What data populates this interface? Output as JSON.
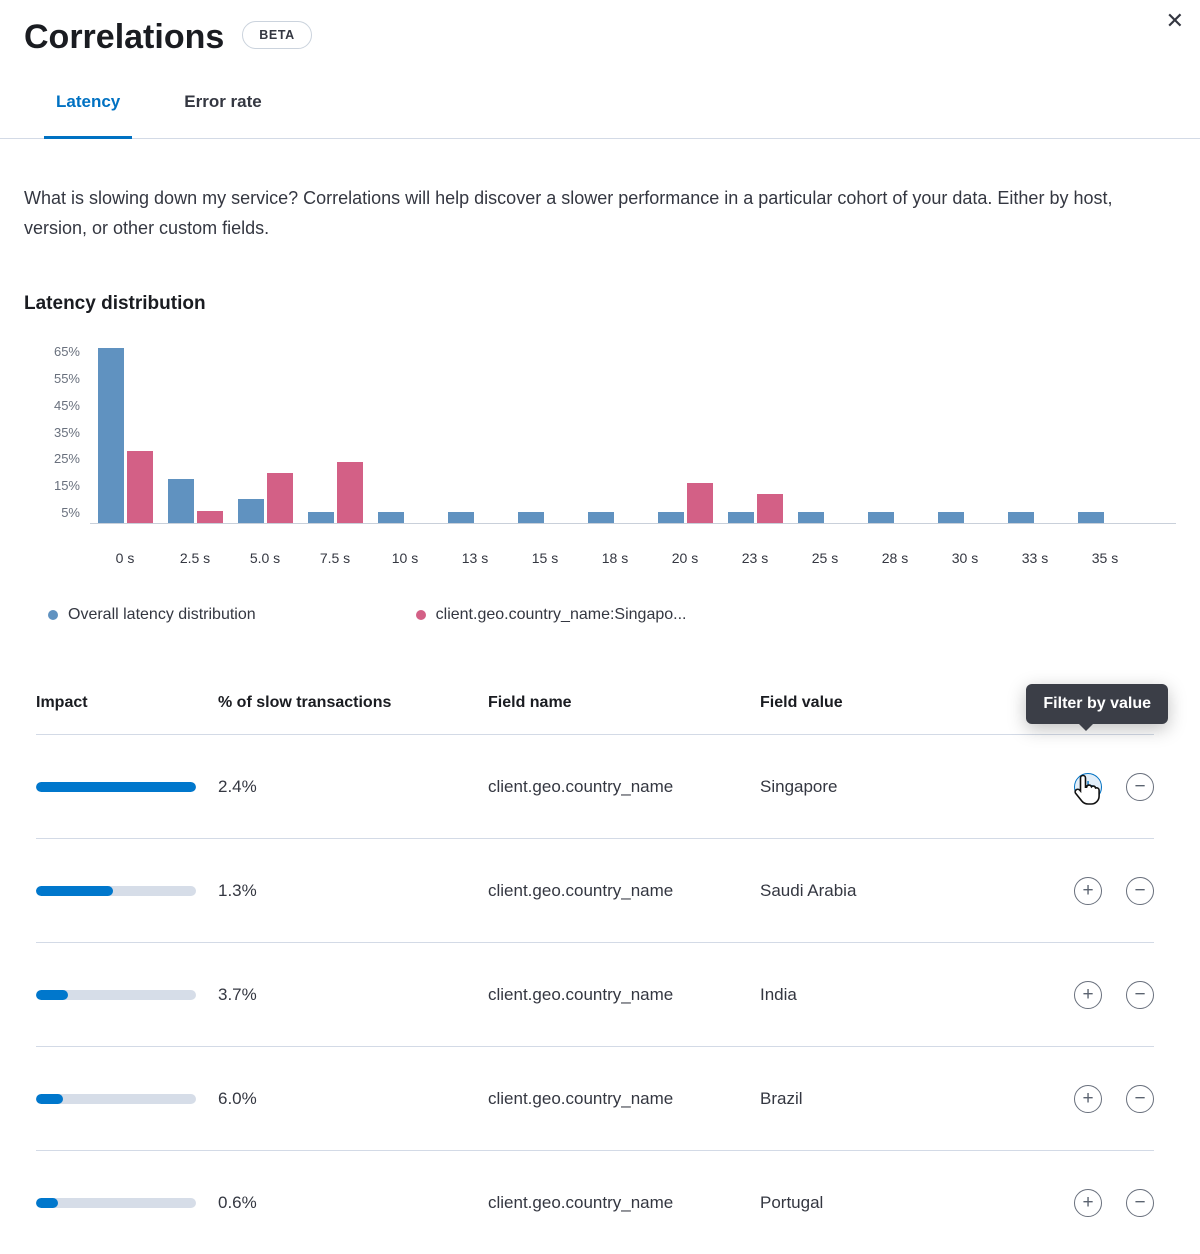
{
  "header": {
    "title": "Correlations",
    "beta_badge": "BETA"
  },
  "icons": {
    "close": "✕",
    "add": "+",
    "remove": "−"
  },
  "tabs": [
    {
      "label": "Latency",
      "active": true
    },
    {
      "label": "Error rate",
      "active": false
    }
  ],
  "description": "What is slowing down my service? Correlations will help discover a slower performance in a particular cohort of your data. Either by host, version, or other custom fields.",
  "chart_data": {
    "type": "bar",
    "title": "Latency distribution",
    "categories": [
      "0 s",
      "2.5 s",
      "5.0 s",
      "7.5 s",
      "10 s",
      "13 s",
      "15 s",
      "18 s",
      "20 s",
      "23 s",
      "25 s",
      "28 s",
      "30 s",
      "33 s",
      "35 s"
    ],
    "series": [
      {
        "name": "Overall latency distribution",
        "color": "#6092C0",
        "values": [
          66,
          16.5,
          9,
          4,
          4,
          4,
          4,
          4,
          4,
          4,
          4,
          4,
          4,
          4,
          4
        ]
      },
      {
        "name": "client.geo.country_name:Singapo...",
        "color": "#D36086",
        "values": [
          27,
          4.5,
          19,
          23,
          0,
          0,
          0,
          0,
          15,
          11,
          0,
          0,
          0,
          0,
          0
        ]
      }
    ],
    "y_ticks": [
      5,
      15,
      25,
      35,
      45,
      55,
      65
    ],
    "y_tick_suffix": "%",
    "ylim": [
      0,
      70
    ],
    "grid": false,
    "legend_position": "bottom"
  },
  "tooltip": {
    "label": "Filter by value"
  },
  "table": {
    "columns": [
      "Impact",
      "% of slow transactions",
      "Field name",
      "Field value"
    ],
    "rows": [
      {
        "impact_pct": 100,
        "slow_transactions": "2.4%",
        "field_name": "client.geo.country_name",
        "field_value": "Singapore"
      },
      {
        "impact_pct": 48,
        "slow_transactions": "1.3%",
        "field_name": "client.geo.country_name",
        "field_value": "Saudi Arabia"
      },
      {
        "impact_pct": 20,
        "slow_transactions": "3.7%",
        "field_name": "client.geo.country_name",
        "field_value": "India"
      },
      {
        "impact_pct": 17,
        "slow_transactions": "6.0%",
        "field_name": "client.geo.country_name",
        "field_value": "Brazil"
      },
      {
        "impact_pct": 14,
        "slow_transactions": "0.6%",
        "field_name": "client.geo.country_name",
        "field_value": "Portugal"
      }
    ]
  },
  "colors": {
    "accent": "#0071C2",
    "impact_fill": "#0077CC",
    "impact_track": "#D6DDE8",
    "series_blue": "#6092C0",
    "series_pink": "#D36086",
    "tooltip_bg": "#3B3E47"
  }
}
